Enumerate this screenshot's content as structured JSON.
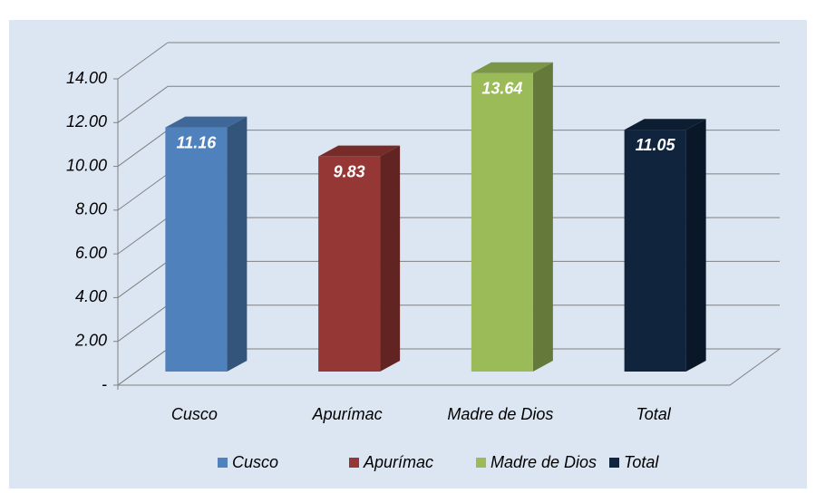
{
  "chart_data": {
    "type": "bar3d",
    "categories": [
      "Cusco",
      "Apurímac",
      "Madre de Dios",
      "Total"
    ],
    "values": [
      11.16,
      9.83,
      13.64,
      11.05
    ],
    "colors": [
      "#4f81bd",
      "#953735",
      "#9bbb59",
      "#10243e"
    ],
    "ylim": [
      0,
      14
    ],
    "yticks": [
      {
        "value": 0,
        "label": "-"
      },
      {
        "value": 2,
        "label": "2.00"
      },
      {
        "value": 4,
        "label": "4.00"
      },
      {
        "value": 6,
        "label": "6.00"
      },
      {
        "value": 8,
        "label": "8.00"
      },
      {
        "value": 10,
        "label": "10.00"
      },
      {
        "value": 12,
        "label": "12.00"
      },
      {
        "value": 14,
        "label": "14.00"
      }
    ],
    "grid": true,
    "legend": "bottom"
  }
}
